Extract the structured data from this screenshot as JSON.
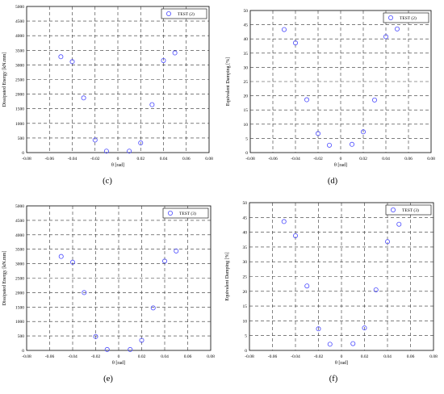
{
  "chart_data": [
    {
      "panel_label": "(c)",
      "type": "scatter",
      "xlabel": "θ [rad]",
      "ylabel": "Dissipated Energy [kN.mm]",
      "xlim": [
        -0.08,
        0.08
      ],
      "ylim": [
        0,
        5000
      ],
      "xticks": [
        "-0.08",
        "-0.06",
        "-0.04",
        "-0.02",
        "0",
        "0.02",
        "0.04",
        "0.06",
        "0.08"
      ],
      "yticks": [
        "0",
        "500",
        "1000",
        "1500",
        "2000",
        "2500",
        "3000",
        "3500",
        "4000",
        "4500",
        "5000"
      ],
      "grid": true,
      "legend_position": "top-right",
      "series": [
        {
          "name": "TEST (2)",
          "color": "#4b4bff",
          "marker": "circle",
          "x": [
            -0.05,
            -0.04,
            -0.03,
            -0.02,
            -0.01,
            0.01,
            0.02,
            0.03,
            0.04,
            0.05
          ],
          "y": [
            3280,
            3110,
            1870,
            430,
            50,
            50,
            330,
            1640,
            3150,
            3410
          ]
        }
      ]
    },
    {
      "panel_label": "(d)",
      "type": "scatter",
      "xlabel": "θ [rad]",
      "ylabel": "Equivalent Damping [%]",
      "xlim": [
        -0.08,
        0.08
      ],
      "ylim": [
        0,
        50
      ],
      "xticks": [
        "-0.08",
        "-0.06",
        "-0.04",
        "-0.02",
        "0",
        "0.02",
        "0.04",
        "0.06",
        "0.08"
      ],
      "yticks": [
        "0",
        "5",
        "10",
        "15",
        "20",
        "25",
        "30",
        "35",
        "40",
        "45",
        "50"
      ],
      "grid": true,
      "legend_position": "top-right",
      "series": [
        {
          "name": "TEST (2)",
          "color": "#4b4bff",
          "marker": "circle",
          "x": [
            -0.05,
            -0.04,
            -0.03,
            -0.02,
            -0.01,
            0.01,
            0.02,
            0.03,
            0.04,
            0.05
          ],
          "y": [
            43.3,
            38.6,
            18.6,
            6.7,
            2.6,
            2.9,
            7.3,
            18.5,
            40.8,
            43.5
          ]
        }
      ]
    },
    {
      "panel_label": "(e)",
      "type": "scatter",
      "xlabel": "θ [rad]",
      "ylabel": "Dissipated Energy [kN.mm]",
      "xlim": [
        -0.08,
        0.08
      ],
      "ylim": [
        0,
        5000
      ],
      "xticks": [
        "-0.08",
        "-0.06",
        "-0.04",
        "-0.02",
        "0",
        "0.02",
        "0.04",
        "0.06",
        "0.08"
      ],
      "yticks": [
        "0",
        "500",
        "1000",
        "1500",
        "2000",
        "2500",
        "3000",
        "3500",
        "4000",
        "4500",
        "5000"
      ],
      "grid": true,
      "legend_position": "top-right",
      "series": [
        {
          "name": "TEST (3)",
          "color": "#4b4bff",
          "marker": "circle",
          "x": [
            -0.05,
            -0.04,
            -0.03,
            -0.02,
            -0.01,
            0.01,
            0.02,
            0.03,
            0.04,
            0.05
          ],
          "y": [
            3250,
            3050,
            2000,
            480,
            30,
            30,
            350,
            1470,
            3090,
            3440
          ]
        }
      ]
    },
    {
      "panel_label": "(f)",
      "type": "scatter",
      "xlabel": "θ [rad]",
      "ylabel": "Equivalent Damping [%]",
      "xlim": [
        -0.08,
        0.08
      ],
      "ylim": [
        0,
        50
      ],
      "xticks": [
        "-0.08",
        "-0.06",
        "-0.04",
        "-0.02",
        "0",
        "0.02",
        "0.04",
        "0.06",
        "0.08"
      ],
      "yticks": [
        "0",
        "5",
        "10",
        "15",
        "20",
        "25",
        "30",
        "35",
        "40",
        "45",
        "50"
      ],
      "grid": true,
      "legend_position": "top-right",
      "series": [
        {
          "name": "TEST (3)",
          "color": "#4b4bff",
          "marker": "circle",
          "x": [
            -0.05,
            -0.04,
            -0.03,
            -0.02,
            -0.01,
            0.01,
            0.02,
            0.03,
            0.04,
            0.05
          ],
          "y": [
            43.6,
            38.8,
            21.8,
            7.3,
            2.1,
            2.3,
            7.6,
            20.5,
            36.8,
            42.7
          ]
        }
      ]
    }
  ]
}
